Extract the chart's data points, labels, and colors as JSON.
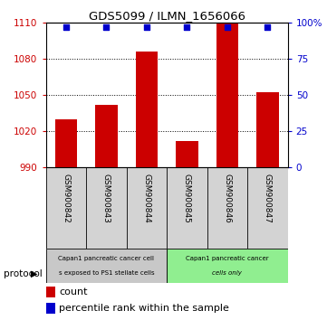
{
  "title": "GDS5099 / ILMN_1656066",
  "samples": [
    "GSM900842",
    "GSM900843",
    "GSM900844",
    "GSM900845",
    "GSM900846",
    "GSM900847"
  ],
  "counts": [
    1030,
    1042,
    1086,
    1012,
    1110,
    1052
  ],
  "percentile_ranks": [
    97,
    97,
    97,
    97,
    97,
    97
  ],
  "ylim_left": [
    990,
    1110
  ],
  "ylim_right": [
    0,
    100
  ],
  "yticks_left": [
    990,
    1020,
    1050,
    1080,
    1110
  ],
  "yticks_right": [
    0,
    25,
    50,
    75,
    100
  ],
  "ytick_labels_right": [
    "0",
    "25",
    "50",
    "75",
    "100%"
  ],
  "bar_color": "#cc0000",
  "dot_color": "#0000cc",
  "protocol_group1_color": "#c8c8c8",
  "protocol_group2_color": "#90ee90",
  "protocol_group1_label_top": "Capan1 pancreatic cancer cell",
  "protocol_group1_label_bot": "s exposed to PS1 stellate cells",
  "protocol_group2_label_top": "Capan1 pancreatic cancer",
  "protocol_group2_label_bot": "cells only",
  "legend_count_color": "#cc0000",
  "legend_rank_color": "#0000cc",
  "background_color": "#ffffff",
  "tick_label_color_left": "#cc0000",
  "tick_label_color_right": "#0000cc",
  "sample_label_bg": "#d3d3d3"
}
